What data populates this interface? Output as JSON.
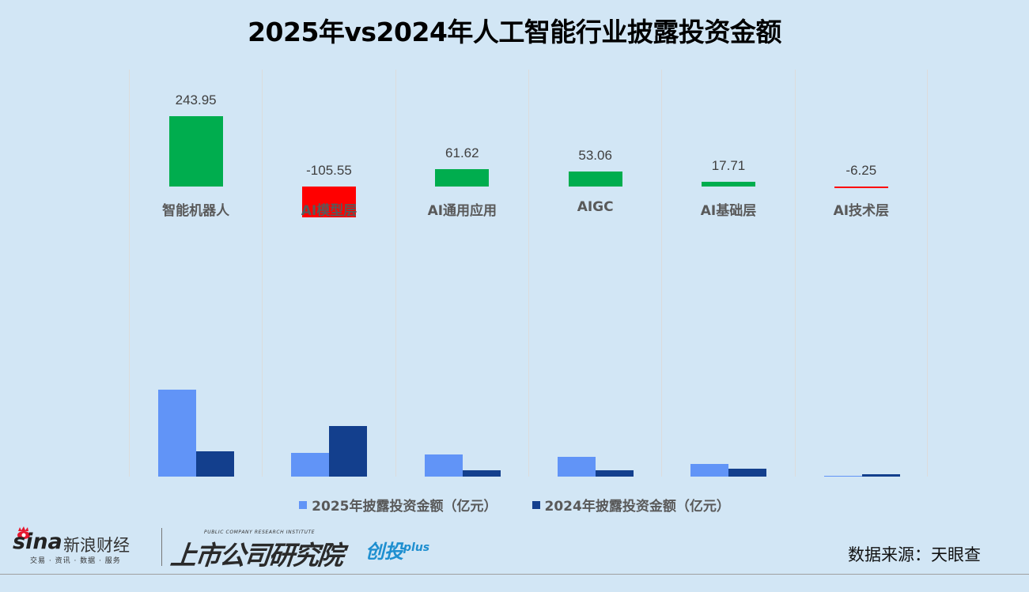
{
  "title": "2025年vs2024年人工智能行业披露投资金额",
  "chart_data": {
    "type": "bar",
    "title": "2025年vs2024年人工智能行业披露投资金额",
    "xlabel": "",
    "ylabel": "",
    "unit": "亿元",
    "categories": [
      "智能机器人",
      "AI模型层",
      "AI通用应用",
      "AIGC",
      "AI基础层",
      "AI技术层"
    ],
    "series": [
      {
        "name": "2025年披露投资金额（亿元）",
        "color": "#6194f7",
        "values": [
          344,
          94,
          87,
          78,
          50,
          3
        ]
      },
      {
        "name": "2024年披露投资金额（亿元）",
        "color": "#133f8d",
        "values": [
          100,
          200,
          25,
          25,
          32,
          9
        ]
      }
    ],
    "difference": {
      "name": "2025 vs 2024 差额",
      "values": [
        243.95,
        -105.55,
        61.62,
        53.06,
        17.71,
        -6.25
      ],
      "labels": [
        "243.95",
        "-105.55",
        "61.62",
        "53.06",
        "17.71",
        "-6.25"
      ],
      "positive_color": "#00ad4e",
      "negative_color": "#ff0000"
    },
    "legend_position": "bottom",
    "grid": "vertical separators"
  },
  "legend": {
    "items": [
      {
        "label": "2025年披露投资金额（亿元）",
        "color": "#6194f7"
      },
      {
        "label": "2024年披露投资金额（亿元）",
        "color": "#133f8d"
      }
    ]
  },
  "footer": {
    "sina_logo": "sina",
    "sina_name": "新浪财经",
    "sina_tagline": "交易 · 资讯 · 数据 · 服务",
    "institute_en": "PUBLIC COMPANY RESEARCH INSTITUTE",
    "institute_cn": "上市公司研究院",
    "brand": "创投",
    "brand_plus": "plus",
    "source": "数据来源：天眼查"
  }
}
